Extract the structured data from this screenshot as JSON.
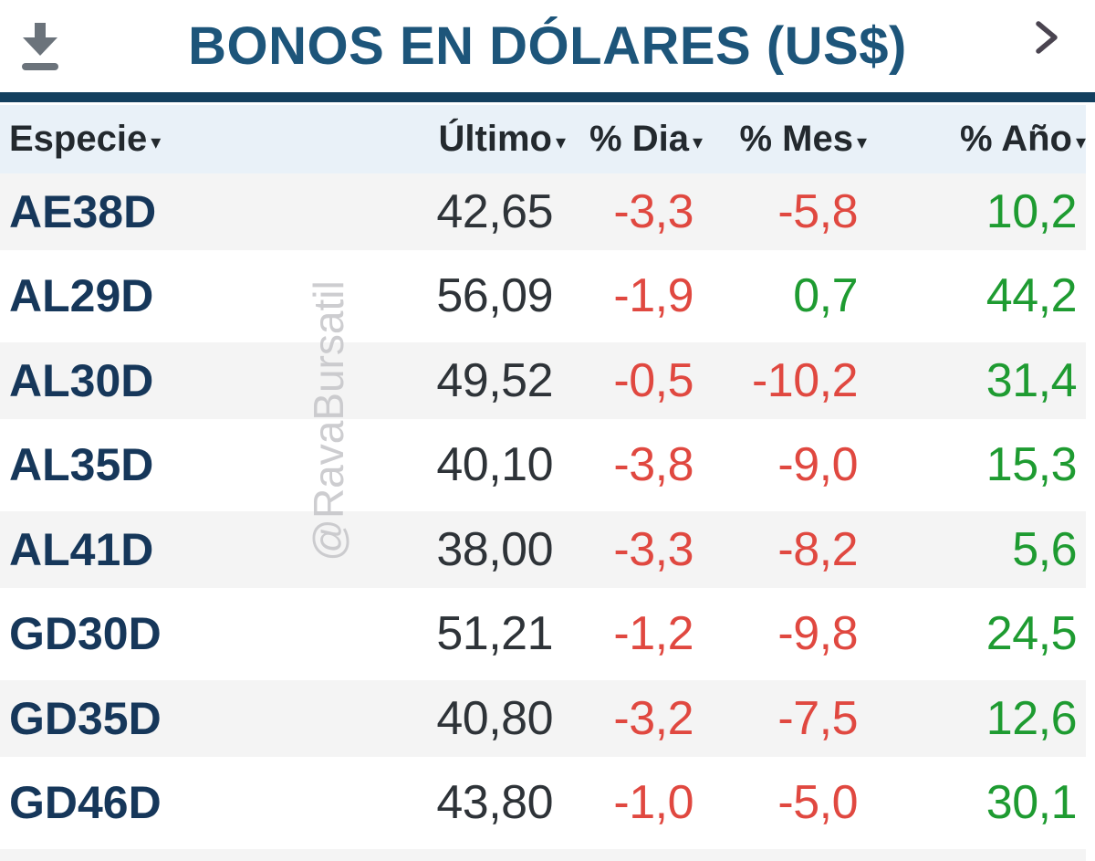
{
  "panel": {
    "title": "BONOS EN DÓLARES (US$)",
    "icons": [
      "download-icon",
      "chevron-right-icon"
    ]
  },
  "table": {
    "sort_indicator": "▾",
    "columns": [
      {
        "key": "especie",
        "label": "Especie",
        "align": "left"
      },
      {
        "key": "ultimo",
        "label": "Último",
        "align": "right"
      },
      {
        "key": "dia",
        "label": "% Dia",
        "align": "right"
      },
      {
        "key": "mes",
        "label": "% Mes",
        "align": "right"
      },
      {
        "key": "ano",
        "label": "% Año",
        "align": "right"
      }
    ],
    "rows": [
      {
        "especie": "AE38D",
        "ultimo": "42,65",
        "dia": "-3,3",
        "mes": "-5,8",
        "ano": "10,2"
      },
      {
        "especie": "AL29D",
        "ultimo": "56,09",
        "dia": "-1,9",
        "mes": "0,7",
        "ano": "44,2"
      },
      {
        "especie": "AL30D",
        "ultimo": "49,52",
        "dia": "-0,5",
        "mes": "-10,2",
        "ano": "31,4"
      },
      {
        "especie": "AL35D",
        "ultimo": "40,10",
        "dia": "-3,8",
        "mes": "-9,0",
        "ano": "15,3"
      },
      {
        "especie": "AL41D",
        "ultimo": "38,00",
        "dia": "-3,3",
        "mes": "-8,2",
        "ano": "5,6"
      },
      {
        "especie": "GD30D",
        "ultimo": "51,21",
        "dia": "-1,2",
        "mes": "-9,8",
        "ano": "24,5"
      },
      {
        "especie": "GD35D",
        "ultimo": "40,80",
        "dia": "-3,2",
        "mes": "-7,5",
        "ano": "12,6"
      },
      {
        "especie": "GD46D",
        "ultimo": "43,80",
        "dia": "-1,0",
        "mes": "-5,0",
        "ano": "30,1"
      }
    ]
  },
  "watermark": {
    "text": "@RavaBursatil"
  },
  "colors": {
    "title_navy": "#1d557a",
    "bar_navy": "#133f5e",
    "header_bg": "#e9f1f8",
    "header_text": "#23292e",
    "ticker_navy": "#16375a",
    "value_dark": "#2e3338",
    "negative_red": "#e04840",
    "positive_green": "#1e9b31",
    "row_alt_bg": "#f4f4f4",
    "watermark_gray": "#c5c5c8",
    "icon_gray": "#6b737b",
    "chevron_dark": "#4a4450"
  }
}
